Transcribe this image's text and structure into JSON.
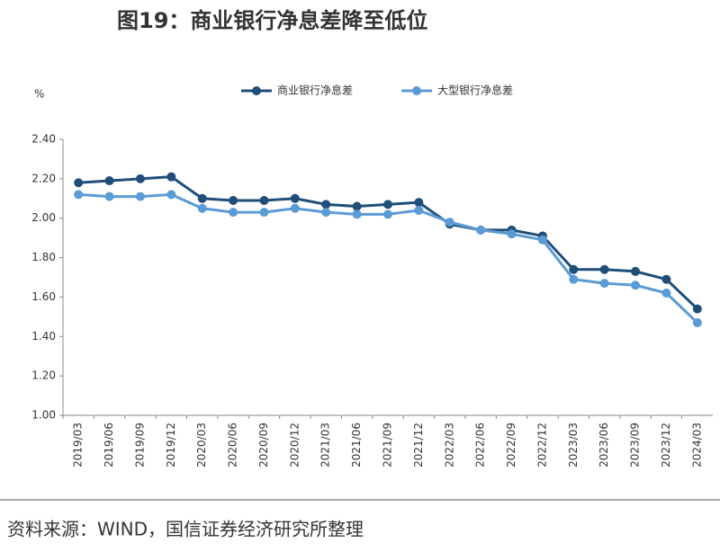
{
  "chart_data": {
    "type": "line",
    "title": "图19：商业银行净息差降至低位",
    "y_label": "%",
    "source": "资料来源：WIND，国信证券经济研究所整理",
    "categories": [
      "2019/03",
      "2019/06",
      "2019/09",
      "2019/12",
      "2020/03",
      "2020/06",
      "2020/09",
      "2020/12",
      "2021/03",
      "2021/06",
      "2021/09",
      "2021/12",
      "2022/03",
      "2022/06",
      "2022/09",
      "2022/12",
      "2023/03",
      "2023/06",
      "2023/09",
      "2023/12",
      "2024/03"
    ],
    "series": [
      {
        "name": "商业银行净息差",
        "color": "#1f4e79",
        "values": [
          2.18,
          2.19,
          2.2,
          2.21,
          2.1,
          2.09,
          2.09,
          2.1,
          2.07,
          2.06,
          2.07,
          2.08,
          1.97,
          1.94,
          1.94,
          1.91,
          1.74,
          1.74,
          1.73,
          1.69,
          1.54
        ]
      },
      {
        "name": "大型银行净息差",
        "color": "#5b9bd5",
        "values": [
          2.12,
          2.11,
          2.11,
          2.12,
          2.05,
          2.03,
          2.03,
          2.05,
          2.03,
          2.02,
          2.02,
          2.04,
          1.98,
          1.94,
          1.92,
          1.89,
          1.69,
          1.67,
          1.66,
          1.62,
          1.47
        ]
      }
    ],
    "ylim": [
      1.0,
      2.4
    ],
    "yticks": [
      {
        "value": 1.0,
        "label": "1.00"
      },
      {
        "value": 1.2,
        "label": "1.20"
      },
      {
        "value": 1.4,
        "label": "1.40"
      },
      {
        "value": 1.6,
        "label": "1.60"
      },
      {
        "value": 1.8,
        "label": "1.80"
      },
      {
        "value": 2.0,
        "label": "2.00"
      },
      {
        "value": 2.2,
        "label": "2.20"
      },
      {
        "value": 2.4,
        "label": "2.40"
      }
    ],
    "legend": "top"
  }
}
